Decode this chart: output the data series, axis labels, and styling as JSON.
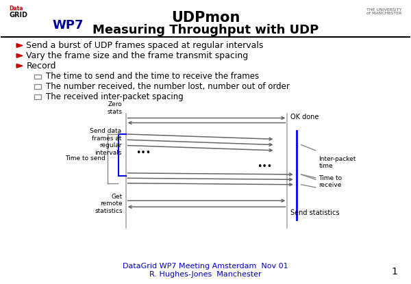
{
  "title_line1": "UDPmon",
  "title_line2": "Measuring Throughput with UDP",
  "bullets": [
    "Send a burst of UDP frames spaced at regular intervals",
    "Vary the frame size and the frame transmit spacing",
    "Record"
  ],
  "sub_bullets": [
    "The time to send and the time to receive the frames",
    "The number received, the number lost, number out of order",
    "The received inter-packet spacing"
  ],
  "footer_line1": "DataGrid WP7 Meeting Amsterdam  Nov 01",
  "footer_line2": "R. Hughes-Jones  Manchester",
  "page_number": "1",
  "bg_color": "#ffffff",
  "title_color": "#000000",
  "bullet_color": "#cc0000",
  "wp7_color": "#000099",
  "footer_color": "#0000cc"
}
